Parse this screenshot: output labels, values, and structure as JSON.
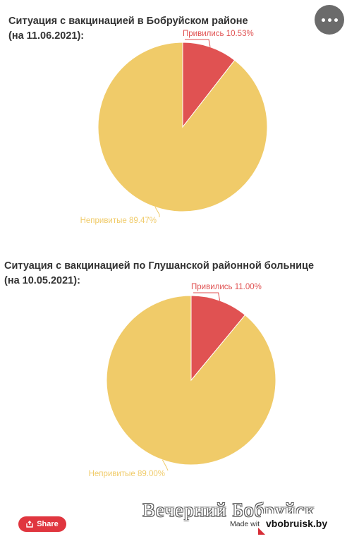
{
  "chart_data": [
    {
      "type": "pie",
      "title": "Ситуация с вакцинацией в Бобруйском районе",
      "subtitle": "(на 11.06.2021):",
      "slices": [
        {
          "name": "Привились",
          "value": 10.53,
          "label": "Привились 10.53%",
          "color": "#e05252"
        },
        {
          "name": "Непривитые",
          "value": 89.47,
          "label": "Непривитые 89.47%",
          "color": "#f0cb69"
        }
      ],
      "legend": "none"
    },
    {
      "type": "pie",
      "title": "Ситуация с вакцинацией по Глушанской районной больнице",
      "subtitle": "(на 10.05.2021):",
      "slices": [
        {
          "name": "Привились",
          "value": 11.0,
          "label": "Привились 11.00%",
          "color": "#e05252"
        },
        {
          "name": "Непривитые",
          "value": 89.0,
          "label": "Непривитые 89.00%",
          "color": "#f0cb69"
        }
      ],
      "legend": "none"
    }
  ],
  "footer": {
    "share_label": "Share",
    "made_with": "Made wit",
    "watermark": "Вечерний Бобруйск",
    "site": "vbobruisk.by"
  },
  "icons": {
    "menu": "more-dots-icon",
    "share": "share-icon"
  }
}
